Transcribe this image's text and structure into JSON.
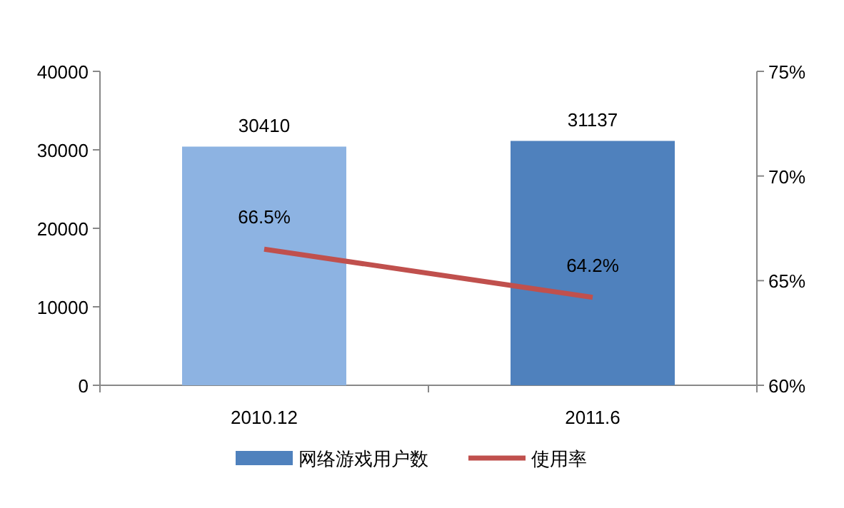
{
  "chart_data": {
    "type": "bar",
    "categories": [
      "2010.12",
      "2011.6"
    ],
    "series": [
      {
        "name": "网络游戏用户数",
        "color": "#4f81bd",
        "colors": [
          "#8db3e2",
          "#4f81bd"
        ],
        "values": [
          30410,
          31137
        ]
      },
      {
        "name": "使用率",
        "type": "line",
        "axis": "y2",
        "color": "#c0504d",
        "values": [
          66.5,
          64.2
        ],
        "value_labels": [
          "66.5%",
          "64.2%"
        ]
      }
    ],
    "ylim": [
      0,
      40000
    ],
    "yticks": [
      0,
      10000,
      20000,
      30000,
      40000
    ],
    "y2lim": [
      60,
      75
    ],
    "y2ticks": [
      {
        "value": 60,
        "label": "60%"
      },
      {
        "value": 65,
        "label": "65%"
      },
      {
        "value": 70,
        "label": "70%"
      },
      {
        "value": 75,
        "label": "75%"
      }
    ],
    "data_labels": true,
    "legend": "bottom",
    "grid": false,
    "marker": "none",
    "line_style": "solid"
  }
}
